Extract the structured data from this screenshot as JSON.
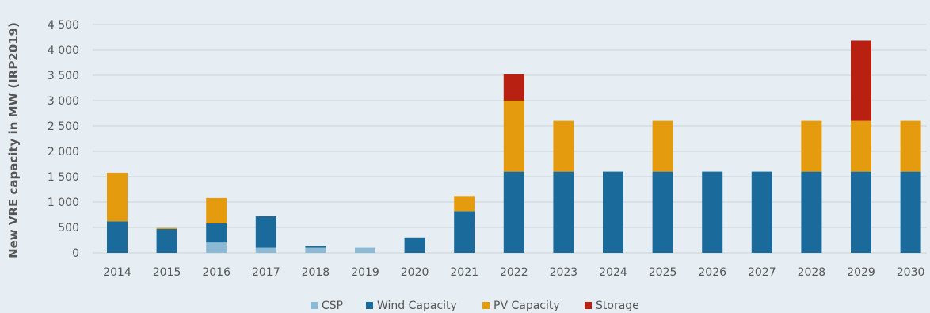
{
  "chart_data": {
    "type": "bar",
    "stacked": true,
    "title": "",
    "xlabel": "",
    "ylabel": "New VRE capacity in MW (IRP2019)",
    "ylim": [
      0,
      4500
    ],
    "yticks": [
      0,
      500,
      1000,
      1500,
      2000,
      2500,
      3000,
      3500,
      4000,
      4500
    ],
    "ytick_labels": [
      "0",
      "500",
      "1 000",
      "1 500",
      "2 000",
      "2 500",
      "3 000",
      "3 500",
      "4 000",
      "4 500"
    ],
    "grid": true,
    "legend_position": "bottom",
    "categories": [
      "2014",
      "2015",
      "2016",
      "2017",
      "2018",
      "2019",
      "2020",
      "2021",
      "2022",
      "2023",
      "2024",
      "2025",
      "2026",
      "2027",
      "2028",
      "2029",
      "2030"
    ],
    "series": [
      {
        "name": "CSP",
        "color": "#8cb9d3",
        "values": [
          0,
          0,
          200,
          100,
          100,
          100,
          0,
          0,
          0,
          0,
          0,
          0,
          0,
          0,
          0,
          0,
          0
        ]
      },
      {
        "name": "Wind Capacity",
        "color": "#1a6a9c",
        "values": [
          620,
          470,
          380,
          620,
          30,
          0,
          300,
          820,
          1600,
          1600,
          1600,
          1600,
          1600,
          1600,
          1600,
          1600,
          1600
        ]
      },
      {
        "name": "PV Capacity",
        "color": "#e59b0e",
        "values": [
          960,
          20,
          500,
          0,
          0,
          0,
          0,
          300,
          1400,
          1000,
          0,
          1000,
          0,
          0,
          1000,
          1000,
          1000
        ]
      },
      {
        "name": "Storage",
        "color": "#b82012",
        "values": [
          0,
          0,
          0,
          0,
          0,
          0,
          0,
          0,
          520,
          0,
          0,
          0,
          0,
          0,
          0,
          1580,
          0
        ]
      }
    ]
  }
}
